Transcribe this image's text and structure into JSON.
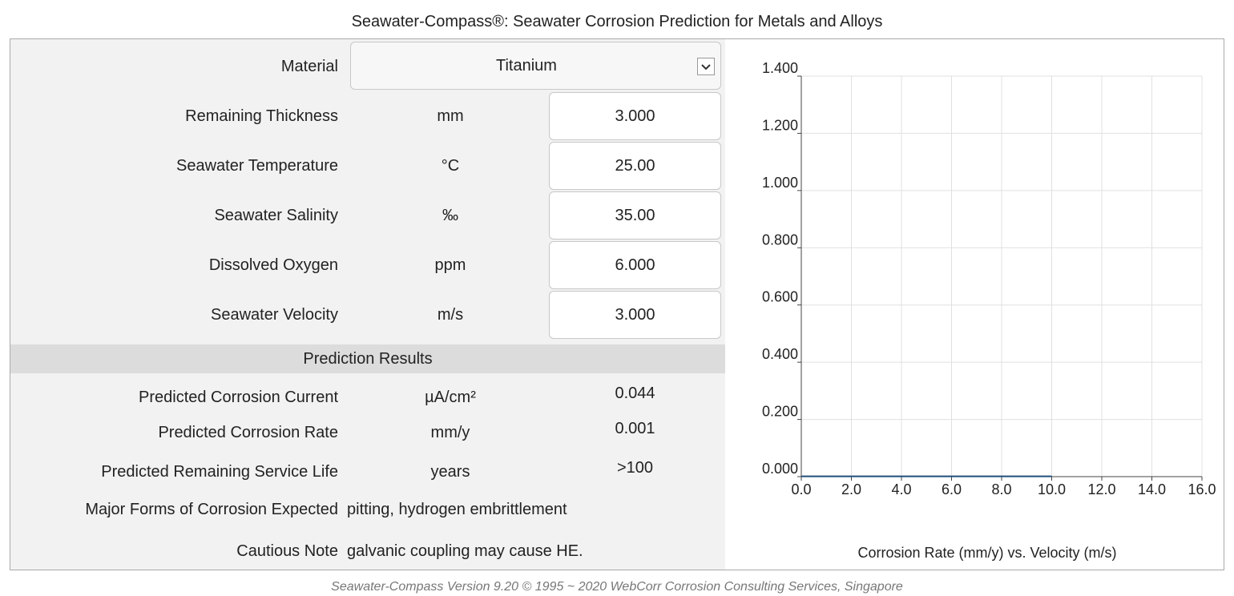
{
  "header": {
    "title": "Seawater-Compass®: Seawater Corrosion Prediction for Metals and Alloys"
  },
  "form": {
    "material_label": "Material",
    "material": "Titanium",
    "inputs": [
      {
        "label": "Remaining Thickness",
        "unit": "mm",
        "value": "3.000"
      },
      {
        "label": "Seawater Temperature",
        "unit": "°C",
        "value": "25.00"
      },
      {
        "label": "Seawater Salinity",
        "unit": "‰",
        "value": "35.00"
      },
      {
        "label": "Dissolved Oxygen",
        "unit": "ppm",
        "value": "6.000"
      },
      {
        "label": "Seawater Velocity",
        "unit": "m/s",
        "value": "3.000"
      }
    ]
  },
  "results": {
    "title": "Prediction Results",
    "rows": [
      {
        "label": "Predicted Corrosion Current",
        "unit": "µA/cm²",
        "value": "0.044"
      },
      {
        "label": "Predicted Corrosion Rate",
        "unit": "mm/y",
        "value": "0.001"
      },
      {
        "label": "Predicted Remaining Service Life",
        "unit": "years",
        "value": ">100"
      }
    ],
    "forms_label": "Major Forms of Corrosion Expected",
    "forms": "pitting, hydrogen embrittlement",
    "note_label": "Cautious Note",
    "note": "galvanic coupling may cause HE."
  },
  "chart_data": {
    "type": "line",
    "x_label": "Corrosion Rate (mm/y) vs. Velocity (m/s)",
    "x": [
      0,
      2,
      4,
      6,
      8,
      10
    ],
    "values": [
      0.001,
      0.001,
      0.001,
      0.001,
      0.001,
      0.001
    ],
    "color": "#1f4e79",
    "xlim": [
      0,
      16
    ],
    "xticks": [
      {
        "value": 0,
        "label": "0.0"
      },
      {
        "value": 2,
        "label": "2.0"
      },
      {
        "value": 4,
        "label": "4.0"
      },
      {
        "value": 6,
        "label": "6.0"
      },
      {
        "value": 8,
        "label": "8.0"
      },
      {
        "value": 10,
        "label": "10.0"
      },
      {
        "value": 12,
        "label": "12.0"
      },
      {
        "value": 14,
        "label": "14.0"
      },
      {
        "value": 16,
        "label": "16.0"
      }
    ],
    "ylim": [
      0,
      1.4
    ],
    "yticks": [
      {
        "value": 0,
        "label": "0.000"
      },
      {
        "value": 0.2,
        "label": "0.200"
      },
      {
        "value": 0.4,
        "label": "0.400"
      },
      {
        "value": 0.6,
        "label": "0.600"
      },
      {
        "value": 0.8,
        "label": "0.800"
      },
      {
        "value": 1.0,
        "label": "1.000"
      },
      {
        "value": 1.2,
        "label": "1.200"
      },
      {
        "value": 1.4,
        "label": "1.400"
      }
    ],
    "grid": true
  },
  "footer": {
    "text": "Seawater-Compass Version 9.20 © 1995 ~ 2020  WebCorr Corrosion Consulting Services, Singapore"
  }
}
